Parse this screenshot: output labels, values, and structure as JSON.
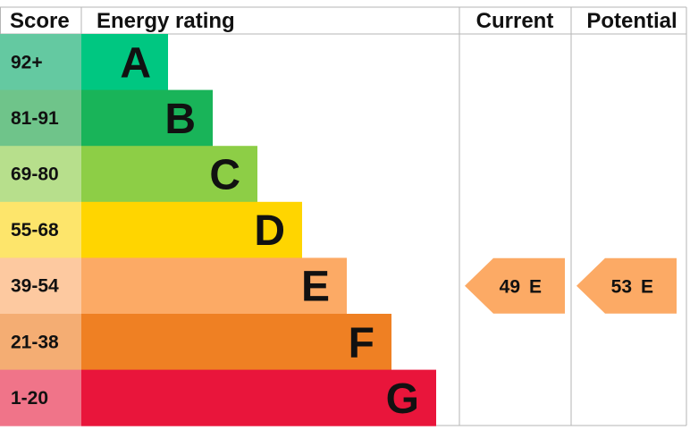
{
  "chart_data": {
    "type": "table",
    "headers": {
      "score": "Score",
      "rating": "Energy rating",
      "current": "Current",
      "potential": "Potential"
    },
    "bands": [
      {
        "range": "92+",
        "letter": "A",
        "color": "#00c781",
        "score_bg": "#64c9a1"
      },
      {
        "range": "81-91",
        "letter": "B",
        "color": "#19b459",
        "score_bg": "#6fc48a"
      },
      {
        "range": "69-80",
        "letter": "C",
        "color": "#8dce46",
        "score_bg": "#b7df8c"
      },
      {
        "range": "55-68",
        "letter": "D",
        "color": "#ffd500",
        "score_bg": "#fde56b"
      },
      {
        "range": "39-54",
        "letter": "E",
        "color": "#fcaa65",
        "score_bg": "#fdc9a0"
      },
      {
        "range": "21-38",
        "letter": "F",
        "color": "#ef8023",
        "score_bg": "#f4ad73"
      },
      {
        "range": "1-20",
        "letter": "G",
        "color": "#e9153b",
        "score_bg": "#f07489"
      }
    ],
    "current": {
      "score": "49",
      "letter": "E",
      "band_index": 4
    },
    "potential": {
      "score": "53",
      "letter": "E",
      "band_index": 4
    },
    "colors": {
      "grid": "#b5b5b5",
      "flag": "#fcaa65"
    }
  }
}
